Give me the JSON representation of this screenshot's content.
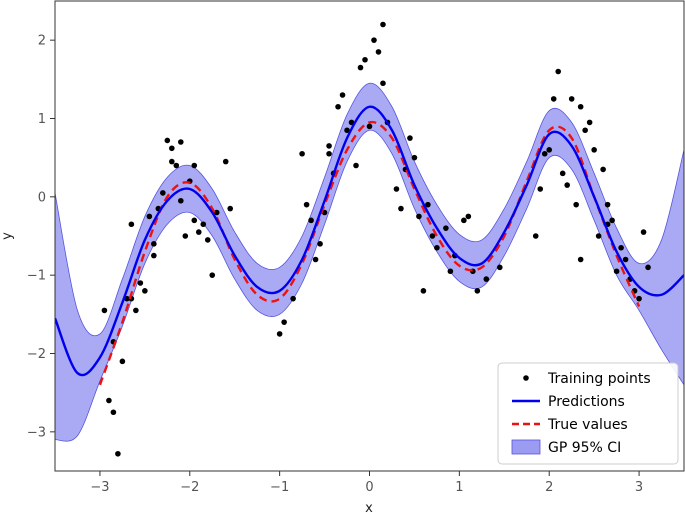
{
  "chart_data": {
    "type": "line",
    "xlabel": "x",
    "ylabel": "y",
    "xlim": [
      -3.5,
      3.5
    ],
    "ylim": [
      -3.5,
      2.5
    ],
    "xticks": [
      -3,
      -2,
      -1,
      0,
      1,
      2,
      3
    ],
    "yticks": [
      -3,
      -2,
      -1,
      0,
      1,
      2
    ],
    "xtick_labels": [
      "−3",
      "−2",
      "−1",
      "0",
      "1",
      "2",
      "3"
    ],
    "ytick_labels": [
      "−3",
      "−2",
      "−1",
      "0",
      "1",
      "2"
    ],
    "grid": false,
    "legend_position": "bottom-right",
    "colors": {
      "points": "#000000",
      "prediction": "#0000ee",
      "true": "#ee1111",
      "ci_fill": "#9b9bf2",
      "ci_edge": "#5555dd"
    },
    "legend": [
      {
        "label": "Training points",
        "kind": "point"
      },
      {
        "label": "Predictions",
        "kind": "line"
      },
      {
        "label": "True values",
        "kind": "dashed"
      },
      {
        "label": "GP 95% CI",
        "kind": "patch"
      }
    ],
    "series": [
      {
        "name": "Predictions",
        "kind": "line",
        "x": [
          -3.5,
          -3.25,
          -3.0,
          -2.75,
          -2.5,
          -2.25,
          -2.0,
          -1.75,
          -1.5,
          -1.25,
          -1.0,
          -0.75,
          -0.5,
          -0.25,
          0.0,
          0.25,
          0.5,
          0.75,
          1.0,
          1.25,
          1.5,
          1.75,
          2.0,
          2.25,
          2.5,
          2.75,
          3.0,
          3.25,
          3.5
        ],
        "y": [
          -1.55,
          -2.25,
          -2.05,
          -1.35,
          -0.55,
          -0.05,
          0.1,
          -0.2,
          -0.75,
          -1.15,
          -1.2,
          -0.8,
          -0.05,
          0.75,
          1.15,
          0.85,
          0.15,
          -0.4,
          -0.78,
          -0.85,
          -0.45,
          0.15,
          0.8,
          0.65,
          0.0,
          -0.7,
          -1.15,
          -1.25,
          -1.0
        ]
      },
      {
        "name": "True values",
        "kind": "dashed",
        "x": [
          -3.0,
          -2.75,
          -2.5,
          -2.25,
          -2.0,
          -1.75,
          -1.5,
          -1.25,
          -1.0,
          -0.75,
          -0.5,
          -0.25,
          0.0,
          0.25,
          0.5,
          0.75,
          1.0,
          1.25,
          1.5,
          1.75,
          2.0,
          2.25,
          2.5,
          2.75,
          3.0
        ],
        "y": [
          -2.4,
          -1.6,
          -0.7,
          0.0,
          0.18,
          -0.15,
          -0.8,
          -1.25,
          -1.3,
          -0.85,
          -0.1,
          0.6,
          0.95,
          0.75,
          0.1,
          -0.5,
          -0.88,
          -0.9,
          -0.5,
          0.2,
          0.85,
          0.75,
          0.0,
          -0.75,
          -1.4
        ]
      },
      {
        "name": "GP 95% CI",
        "kind": "band",
        "x": [
          -3.5,
          -3.25,
          -3.0,
          -2.75,
          -2.5,
          -2.25,
          -2.0,
          -1.75,
          -1.5,
          -1.25,
          -1.0,
          -0.75,
          -0.5,
          -0.25,
          0.0,
          0.25,
          0.5,
          0.75,
          1.0,
          1.25,
          1.5,
          1.75,
          2.0,
          2.25,
          2.5,
          2.75,
          3.0,
          3.25,
          3.5
        ],
        "lower": [
          -3.1,
          -3.05,
          -2.35,
          -1.65,
          -0.85,
          -0.35,
          -0.2,
          -0.5,
          -1.05,
          -1.45,
          -1.5,
          -1.1,
          -0.35,
          0.45,
          0.85,
          0.55,
          -0.15,
          -0.7,
          -1.08,
          -1.15,
          -0.75,
          -0.15,
          0.5,
          0.35,
          -0.3,
          -1.0,
          -1.45,
          -1.95,
          -2.4
        ],
        "upper": [
          0.05,
          -1.45,
          -1.75,
          -1.05,
          -0.25,
          0.25,
          0.4,
          0.1,
          -0.45,
          -0.85,
          -0.9,
          -0.5,
          0.25,
          1.05,
          1.45,
          1.15,
          0.45,
          -0.1,
          -0.48,
          -0.55,
          -0.15,
          0.45,
          1.1,
          0.95,
          0.3,
          -0.4,
          -0.85,
          -0.55,
          0.6
        ]
      },
      {
        "name": "Training points",
        "kind": "scatter",
        "x": [
          -2.95,
          -2.9,
          -2.85,
          -2.8,
          -2.75,
          -2.7,
          -2.65,
          -2.6,
          -2.55,
          -2.5,
          -2.45,
          -2.4,
          -2.35,
          -2.3,
          -2.25,
          -2.2,
          -2.15,
          -2.1,
          -2.05,
          -2.0,
          -1.95,
          -1.9,
          -1.85,
          -1.8,
          -1.75,
          -1.7,
          -1.6,
          -1.55,
          -1.0,
          -0.95,
          -0.85,
          -0.75,
          -0.7,
          -0.65,
          -0.6,
          -0.55,
          -0.5,
          -0.45,
          -0.4,
          -0.35,
          -0.3,
          -0.25,
          -0.2,
          -0.15,
          -0.1,
          -0.05,
          0.0,
          0.05,
          0.1,
          0.15,
          0.2,
          0.3,
          0.35,
          0.4,
          0.45,
          0.5,
          0.55,
          0.6,
          0.65,
          0.7,
          0.75,
          0.85,
          0.9,
          0.95,
          1.05,
          1.1,
          1.15,
          1.2,
          1.3,
          1.45,
          1.85,
          1.9,
          1.95,
          2.0,
          2.05,
          2.1,
          2.15,
          2.2,
          2.25,
          2.3,
          2.35,
          2.4,
          2.45,
          2.5,
          2.55,
          2.6,
          2.65,
          2.7,
          2.75,
          2.8,
          2.85,
          2.9,
          2.95,
          3.0,
          3.05,
          3.1,
          -2.2,
          -2.1,
          -1.95,
          -2.4,
          -2.65,
          -2.85,
          -0.45,
          0.15,
          2.35,
          2.65
        ],
        "y": [
          -1.45,
          -2.6,
          -2.75,
          -3.28,
          -2.1,
          -1.3,
          -0.35,
          -1.45,
          -1.1,
          -1.2,
          -0.25,
          -0.6,
          -0.15,
          0.05,
          0.72,
          0.62,
          0.4,
          0.7,
          -0.5,
          0.2,
          0.4,
          -0.45,
          -0.35,
          -0.55,
          -1.0,
          -0.2,
          0.45,
          -0.15,
          -1.75,
          -1.6,
          -1.3,
          0.55,
          -0.1,
          -0.3,
          -0.8,
          -0.6,
          -0.2,
          0.55,
          0.3,
          1.15,
          1.3,
          0.85,
          0.95,
          0.4,
          1.65,
          1.75,
          0.9,
          2.0,
          1.85,
          2.2,
          0.95,
          0.1,
          -0.15,
          0.35,
          0.75,
          0.5,
          -0.25,
          -1.2,
          -0.1,
          -0.5,
          -0.65,
          -0.4,
          -0.95,
          -0.75,
          -0.3,
          -0.25,
          -0.95,
          -1.2,
          -1.05,
          -0.9,
          -0.5,
          0.1,
          0.55,
          0.6,
          1.25,
          1.6,
          0.3,
          0.15,
          1.25,
          -0.1,
          1.15,
          0.85,
          0.95,
          0.6,
          -0.5,
          0.35,
          -0.1,
          -0.3,
          -0.95,
          -0.65,
          -0.8,
          -1.05,
          -1.2,
          -1.3,
          -0.45,
          -0.9,
          0.45,
          -0.05,
          -0.3,
          -0.75,
          -1.3,
          -1.85,
          0.65,
          1.45,
          -0.8,
          -0.35
        ]
      }
    ]
  }
}
